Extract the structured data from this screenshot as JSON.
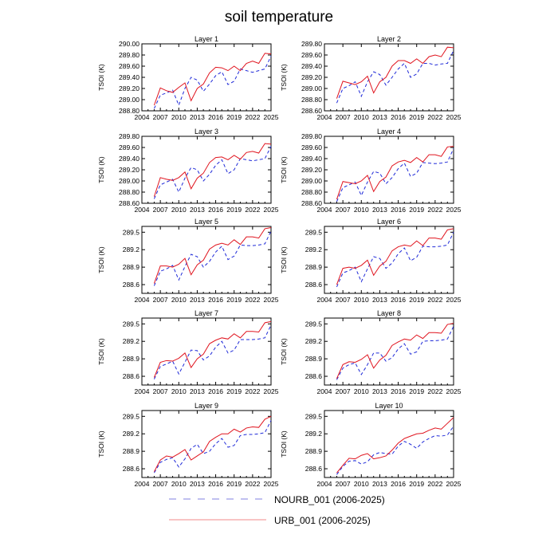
{
  "figure": {
    "title": "soil temperature",
    "colors": {
      "NOURB_001": "#1f2ad8",
      "URB_001": "#e0141e"
    }
  },
  "legend": [
    {
      "name": "NOURB_001 (2006-2025)",
      "style": "dashed",
      "color": "#8080e0"
    },
    {
      "name": "URB_001 (2006-2025)",
      "style": "solid",
      "color": "#f08a8a"
    }
  ],
  "chart_data": [
    {
      "type": "line",
      "title": "Layer 1",
      "ylabel": "TSOI  (K)",
      "xlim": [
        2004,
        2025
      ],
      "xticks": [
        2004,
        2007,
        2010,
        2013,
        2016,
        2019,
        2022,
        2025
      ],
      "ylim": [
        288.8,
        290.0
      ],
      "yticks": [
        288.8,
        289.0,
        289.2,
        289.4,
        289.6,
        289.8,
        290.0
      ],
      "ydecimals": 2,
      "x": [
        2006,
        2007,
        2008,
        2009,
        2010,
        2011,
        2012,
        2013,
        2014,
        2015,
        2016,
        2017,
        2018,
        2019,
        2020,
        2021,
        2022,
        2023,
        2024,
        2025
      ],
      "series": [
        {
          "name": "NOURB_001",
          "values": [
            288.84,
            289.08,
            289.12,
            289.17,
            288.9,
            289.2,
            289.4,
            289.35,
            289.15,
            289.28,
            289.43,
            289.5,
            289.27,
            289.33,
            289.55,
            289.52,
            289.49,
            289.52,
            289.55,
            289.78
          ]
        },
        {
          "name": "URB_001",
          "values": [
            288.9,
            289.21,
            289.16,
            289.13,
            289.22,
            289.3,
            288.98,
            289.2,
            289.28,
            289.48,
            289.58,
            289.57,
            289.52,
            289.6,
            289.52,
            289.65,
            289.69,
            289.65,
            289.83,
            289.82
          ]
        }
      ]
    },
    {
      "type": "line",
      "title": "Layer 2",
      "ylabel": "TSOI  (K)",
      "xlim": [
        2004,
        2025
      ],
      "xticks": [
        2004,
        2007,
        2010,
        2013,
        2016,
        2019,
        2022,
        2025
      ],
      "ylim": [
        288.6,
        289.8
      ],
      "yticks": [
        288.6,
        288.8,
        289.0,
        289.2,
        289.4,
        289.6,
        289.8
      ],
      "ydecimals": 2,
      "x": [
        2006,
        2007,
        2008,
        2009,
        2010,
        2011,
        2012,
        2013,
        2014,
        2015,
        2016,
        2017,
        2018,
        2019,
        2020,
        2021,
        2022,
        2023,
        2024,
        2025
      ],
      "series": [
        {
          "name": "NOURB_001",
          "values": [
            288.74,
            289.0,
            289.05,
            289.12,
            288.86,
            289.12,
            289.3,
            289.25,
            289.06,
            289.2,
            289.35,
            289.45,
            289.2,
            289.26,
            289.45,
            289.45,
            289.42,
            289.44,
            289.45,
            289.68
          ]
        },
        {
          "name": "URB_001",
          "values": [
            288.82,
            289.13,
            289.1,
            289.07,
            289.12,
            289.22,
            288.92,
            289.12,
            289.2,
            289.4,
            289.5,
            289.5,
            289.45,
            289.53,
            289.45,
            289.57,
            289.6,
            289.57,
            289.74,
            289.73
          ]
        }
      ]
    },
    {
      "type": "line",
      "title": "Layer 3",
      "ylabel": "TSOI  (K)",
      "xlim": [
        2004,
        2025
      ],
      "xticks": [
        2004,
        2007,
        2010,
        2013,
        2016,
        2019,
        2022,
        2025
      ],
      "ylim": [
        288.6,
        289.8
      ],
      "yticks": [
        288.6,
        288.8,
        289.0,
        289.2,
        289.4,
        289.6,
        289.8
      ],
      "ydecimals": 2,
      "x": [
        2006,
        2007,
        2008,
        2009,
        2010,
        2011,
        2012,
        2013,
        2014,
        2015,
        2016,
        2017,
        2018,
        2019,
        2020,
        2021,
        2022,
        2023,
        2024,
        2025
      ],
      "series": [
        {
          "name": "NOURB_001",
          "values": [
            288.68,
            288.93,
            288.98,
            289.03,
            288.8,
            289.05,
            289.24,
            289.2,
            289.0,
            289.12,
            289.28,
            289.38,
            289.13,
            289.2,
            289.4,
            289.38,
            289.36,
            289.38,
            289.4,
            289.62
          ]
        },
        {
          "name": "URB_001",
          "values": [
            288.72,
            289.06,
            289.03,
            289.01,
            289.06,
            289.16,
            288.86,
            289.05,
            289.14,
            289.33,
            289.42,
            289.43,
            289.38,
            289.46,
            289.39,
            289.51,
            289.53,
            289.5,
            289.67,
            289.66
          ]
        }
      ]
    },
    {
      "type": "line",
      "title": "Layer 4",
      "ylabel": "TSOI  (K)",
      "xlim": [
        2004,
        2025
      ],
      "xticks": [
        2004,
        2007,
        2010,
        2013,
        2016,
        2019,
        2022,
        2025
      ],
      "ylim": [
        288.6,
        289.8
      ],
      "yticks": [
        288.6,
        288.8,
        289.0,
        289.2,
        289.4,
        289.6,
        289.8
      ],
      "ydecimals": 2,
      "x": [
        2006,
        2007,
        2008,
        2009,
        2010,
        2011,
        2012,
        2013,
        2014,
        2015,
        2016,
        2017,
        2018,
        2019,
        2020,
        2021,
        2022,
        2023,
        2024,
        2025
      ],
      "series": [
        {
          "name": "NOURB_001",
          "values": [
            288.63,
            288.88,
            288.93,
            288.98,
            288.74,
            288.98,
            289.17,
            289.14,
            288.95,
            289.06,
            289.22,
            289.32,
            289.08,
            289.14,
            289.33,
            289.32,
            289.31,
            289.32,
            289.34,
            289.58
          ]
        },
        {
          "name": "URB_001",
          "values": [
            288.67,
            288.99,
            288.97,
            288.95,
            289.0,
            289.1,
            288.81,
            288.99,
            289.07,
            289.27,
            289.34,
            289.37,
            289.33,
            289.42,
            289.34,
            289.47,
            289.47,
            289.44,
            289.61,
            289.62
          ]
        }
      ]
    },
    {
      "type": "line",
      "title": "Layer 5",
      "ylabel": "TSOI  (K)",
      "xlim": [
        2004,
        2025
      ],
      "xticks": [
        2004,
        2007,
        2010,
        2013,
        2016,
        2019,
        2022,
        2025
      ],
      "ylim": [
        288.45,
        289.6
      ],
      "yticks": [
        288.6,
        288.9,
        289.2,
        289.5
      ],
      "ydecimals": 1,
      "x": [
        2006,
        2007,
        2008,
        2009,
        2010,
        2011,
        2012,
        2013,
        2014,
        2015,
        2016,
        2017,
        2018,
        2019,
        2020,
        2021,
        2022,
        2023,
        2024,
        2025
      ],
      "series": [
        {
          "name": "NOURB_001",
          "values": [
            288.58,
            288.83,
            288.87,
            288.93,
            288.68,
            288.91,
            289.12,
            289.08,
            288.9,
            289.0,
            289.16,
            289.26,
            289.03,
            289.09,
            289.28,
            289.27,
            289.27,
            289.28,
            289.3,
            289.52
          ]
        },
        {
          "name": "URB_001",
          "values": [
            288.62,
            288.92,
            288.92,
            288.9,
            288.95,
            289.05,
            288.77,
            288.94,
            289.02,
            289.21,
            289.28,
            289.31,
            289.28,
            289.37,
            289.29,
            289.42,
            289.42,
            289.4,
            289.56,
            289.58
          ]
        }
      ]
    },
    {
      "type": "line",
      "title": "Layer 6",
      "ylabel": "TSOI  (K)",
      "xlim": [
        2004,
        2025
      ],
      "xticks": [
        2004,
        2007,
        2010,
        2013,
        2016,
        2019,
        2022,
        2025
      ],
      "ylim": [
        288.45,
        289.6
      ],
      "yticks": [
        288.6,
        288.9,
        289.2,
        289.5
      ],
      "ydecimals": 1,
      "x": [
        2006,
        2007,
        2008,
        2009,
        2010,
        2011,
        2012,
        2013,
        2014,
        2015,
        2016,
        2017,
        2018,
        2019,
        2020,
        2021,
        2022,
        2023,
        2024,
        2025
      ],
      "series": [
        {
          "name": "NOURB_001",
          "values": [
            288.56,
            288.8,
            288.84,
            288.9,
            288.65,
            288.87,
            289.08,
            289.05,
            288.88,
            288.97,
            289.13,
            289.23,
            289.01,
            289.07,
            289.26,
            289.25,
            289.25,
            289.26,
            289.28,
            289.5
          ]
        },
        {
          "name": "URB_001",
          "values": [
            288.6,
            288.88,
            288.9,
            288.88,
            288.93,
            289.02,
            288.76,
            288.92,
            289.0,
            289.18,
            289.25,
            289.28,
            289.26,
            289.35,
            289.27,
            289.4,
            289.4,
            289.38,
            289.54,
            289.56
          ]
        }
      ]
    },
    {
      "type": "line",
      "title": "Layer 7",
      "ylabel": "TSOI  (K)",
      "xlim": [
        2004,
        2025
      ],
      "xticks": [
        2004,
        2007,
        2010,
        2013,
        2016,
        2019,
        2022,
        2025
      ],
      "ylim": [
        288.45,
        289.6
      ],
      "yticks": [
        288.6,
        288.9,
        289.2,
        289.5
      ],
      "ydecimals": 1,
      "x": [
        2006,
        2007,
        2008,
        2009,
        2010,
        2011,
        2012,
        2013,
        2014,
        2015,
        2016,
        2017,
        2018,
        2019,
        2020,
        2021,
        2022,
        2023,
        2024,
        2025
      ],
      "series": [
        {
          "name": "NOURB_001",
          "values": [
            288.55,
            288.77,
            288.81,
            288.86,
            288.64,
            288.84,
            289.05,
            289.04,
            288.88,
            288.95,
            289.1,
            289.2,
            289.0,
            289.05,
            289.23,
            289.23,
            289.23,
            289.24,
            289.26,
            289.48
          ]
        },
        {
          "name": "URB_001",
          "values": [
            288.58,
            288.84,
            288.87,
            288.86,
            288.91,
            289.0,
            288.75,
            288.9,
            288.98,
            289.16,
            289.22,
            289.26,
            289.24,
            289.33,
            289.26,
            289.37,
            289.37,
            289.36,
            289.52,
            289.54
          ]
        }
      ]
    },
    {
      "type": "line",
      "title": "Layer 8",
      "ylabel": "TSOI  (K)",
      "xlim": [
        2004,
        2025
      ],
      "xticks": [
        2004,
        2007,
        2010,
        2013,
        2016,
        2019,
        2022,
        2025
      ],
      "ylim": [
        288.45,
        289.6
      ],
      "yticks": [
        288.6,
        288.9,
        289.2,
        289.5
      ],
      "ydecimals": 1,
      "x": [
        2006,
        2007,
        2008,
        2009,
        2010,
        2011,
        2012,
        2013,
        2014,
        2015,
        2016,
        2017,
        2018,
        2019,
        2020,
        2021,
        2022,
        2023,
        2024,
        2025
      ],
      "series": [
        {
          "name": "NOURB_001",
          "values": [
            288.54,
            288.74,
            288.8,
            288.83,
            288.63,
            288.8,
            289.0,
            289.0,
            288.86,
            288.92,
            289.07,
            289.16,
            288.98,
            289.02,
            289.2,
            289.21,
            289.21,
            289.22,
            289.24,
            289.46
          ]
        },
        {
          "name": "URB_001",
          "values": [
            288.56,
            288.8,
            288.85,
            288.84,
            288.89,
            288.97,
            288.74,
            288.88,
            288.96,
            289.13,
            289.19,
            289.24,
            289.22,
            289.31,
            289.25,
            289.35,
            289.35,
            289.34,
            289.49,
            289.51
          ]
        }
      ]
    },
    {
      "type": "line",
      "title": "Layer 9",
      "ylabel": "TSOI  (K)",
      "xlim": [
        2004,
        2025
      ],
      "xticks": [
        2004,
        2007,
        2010,
        2013,
        2016,
        2019,
        2022,
        2025
      ],
      "ylim": [
        288.45,
        289.6
      ],
      "yticks": [
        288.6,
        288.9,
        289.2,
        289.5
      ],
      "ydecimals": 1,
      "x": [
        2006,
        2007,
        2008,
        2009,
        2010,
        2011,
        2012,
        2013,
        2014,
        2015,
        2016,
        2017,
        2018,
        2019,
        2020,
        2021,
        2022,
        2023,
        2024,
        2025
      ],
      "series": [
        {
          "name": "NOURB_001",
          "values": [
            288.53,
            288.71,
            288.76,
            288.79,
            288.63,
            288.77,
            288.95,
            289.02,
            288.86,
            288.9,
            289.03,
            289.12,
            288.97,
            289.0,
            289.17,
            289.19,
            289.19,
            289.2,
            289.22,
            289.43
          ]
        },
        {
          "name": "URB_001",
          "values": [
            288.55,
            288.75,
            288.82,
            288.8,
            288.86,
            288.93,
            288.75,
            288.82,
            288.89,
            289.07,
            289.14,
            289.2,
            289.2,
            289.28,
            289.23,
            289.3,
            289.32,
            289.31,
            289.45,
            289.5
          ]
        }
      ]
    },
    {
      "type": "line",
      "title": "Layer 10",
      "ylabel": "TSOI  (K)",
      "xlim": [
        2004,
        2025
      ],
      "xticks": [
        2004,
        2007,
        2010,
        2013,
        2016,
        2019,
        2022,
        2025
      ],
      "ylim": [
        288.45,
        289.6
      ],
      "yticks": [
        288.6,
        288.9,
        289.2,
        289.5
      ],
      "ydecimals": 1,
      "x": [
        2006,
        2007,
        2008,
        2009,
        2010,
        2011,
        2012,
        2013,
        2014,
        2015,
        2016,
        2017,
        2018,
        2019,
        2020,
        2021,
        2022,
        2023,
        2024,
        2025
      ],
      "series": [
        {
          "name": "NOURB_001",
          "values": [
            288.5,
            288.64,
            288.73,
            288.74,
            288.68,
            288.72,
            288.84,
            288.88,
            288.86,
            288.85,
            288.99,
            289.07,
            289.02,
            288.95,
            289.06,
            289.12,
            289.17,
            289.16,
            289.18,
            289.33
          ]
        },
        {
          "name": "URB_001",
          "values": [
            288.53,
            288.66,
            288.78,
            288.77,
            288.83,
            288.86,
            288.77,
            288.79,
            288.82,
            288.92,
            289.04,
            289.12,
            289.16,
            289.2,
            289.21,
            289.26,
            289.3,
            289.28,
            289.38,
            289.48
          ]
        }
      ]
    }
  ]
}
